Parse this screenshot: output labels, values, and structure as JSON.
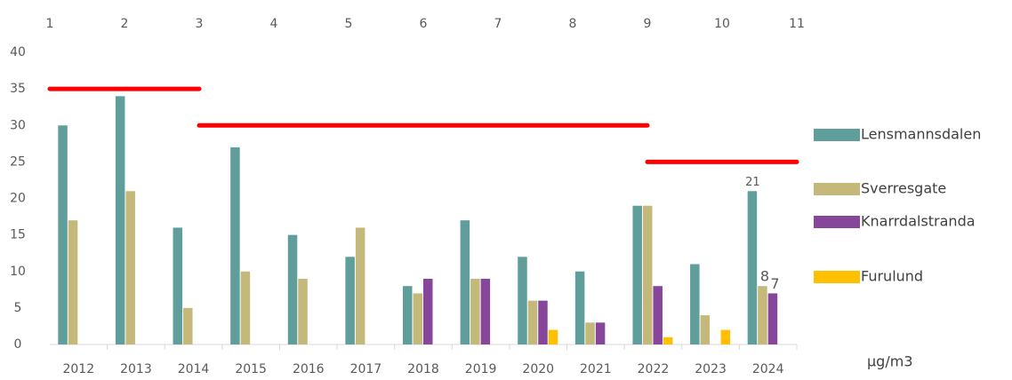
{
  "chart_data": {
    "type": "bar",
    "categories": [
      "2012",
      "2013",
      "2014",
      "2015",
      "2016",
      "2017",
      "2018",
      "2019",
      "2020",
      "2021",
      "2022",
      "2023",
      "2024"
    ],
    "series": [
      {
        "name": "Lensmannsdalen",
        "color": "#5f9e9a",
        "values": [
          30,
          34,
          16,
          27,
          15,
          12,
          8,
          17,
          12,
          10,
          19,
          11,
          21
        ],
        "labeled": [
          12
        ]
      },
      {
        "name": "Sverresgate",
        "color": "#c4b97a",
        "values": [
          17,
          21,
          5,
          10,
          9,
          16,
          7,
          9,
          6,
          3,
          19,
          4,
          8
        ],
        "labeled": [
          12
        ]
      },
      {
        "name": "Knarrdalstranda",
        "color": "#86479a",
        "values": [
          null,
          null,
          null,
          null,
          null,
          null,
          9,
          9,
          6,
          3,
          8,
          null,
          7
        ],
        "labeled": [
          12
        ]
      },
      {
        "name": "Furulund",
        "color": "#ffc000",
        "values": [
          null,
          null,
          null,
          null,
          null,
          null,
          null,
          null,
          2,
          null,
          1,
          2,
          null
        ],
        "labeled": []
      }
    ],
    "ylim": [
      0,
      40
    ],
    "yticks": [
      0,
      5,
      10,
      15,
      20,
      25,
      30,
      35,
      40
    ],
    "x2lim": [
      1,
      11
    ],
    "x2ticks": [
      1,
      2,
      3,
      4,
      5,
      6,
      7,
      8,
      9,
      10,
      11
    ],
    "limit_lines": [
      {
        "y": 35,
        "x": [
          1,
          3
        ],
        "color": "#ff0000"
      },
      {
        "y": 30,
        "x": [
          3,
          9
        ],
        "color": "#ff0000"
      },
      {
        "y": 25,
        "x": [
          9,
          11
        ],
        "color": "#ff0000"
      }
    ],
    "unit": "µg/m3",
    "grid": false
  }
}
